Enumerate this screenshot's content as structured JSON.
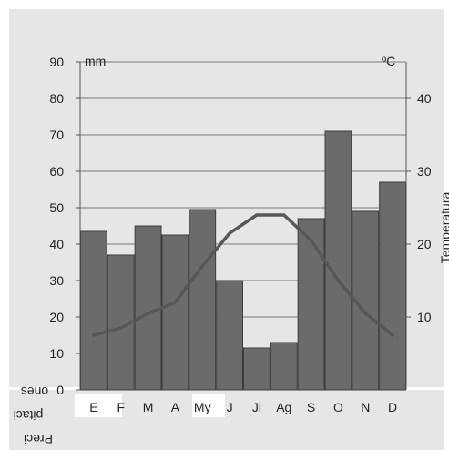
{
  "chart_data": {
    "type": "bar",
    "categories": [
      "E",
      "F",
      "M",
      "A",
      "My",
      "J",
      "Jl",
      "Ag",
      "S",
      "O",
      "N",
      "D"
    ],
    "series": [
      {
        "type": "bar",
        "values": [
          43.5,
          37,
          45,
          42.5,
          49.5,
          30,
          11.5,
          13,
          47,
          71,
          49,
          57
        ],
        "color": "#6b6b6b",
        "axis": "left"
      },
      {
        "type": "line",
        "values": [
          7.5,
          8.5,
          10.5,
          12,
          17,
          21.5,
          24,
          24,
          20.5,
          15,
          10.5,
          7.5
        ],
        "color": "#575757",
        "axis": "right"
      }
    ],
    "y_left": {
      "unit": "mm",
      "ticks": [
        0,
        10,
        20,
        30,
        40,
        50,
        60,
        70,
        80,
        90
      ],
      "tick_labels": [
        "0",
        "10",
        "20",
        "30",
        "40",
        "50",
        "60",
        "70",
        "80",
        "90"
      ],
      "range": [
        0,
        90
      ],
      "label_lines": [
        "ones",
        "pitaci",
        "Preci"
      ],
      "label_orientation": "upside-down"
    },
    "y_right": {
      "unit": "ºC",
      "ticks": [
        10,
        20,
        30,
        40
      ],
      "tick_labels": [
        "10",
        "20",
        "30",
        "40"
      ],
      "range": [
        0,
        45
      ],
      "label": "Temperatura"
    },
    "grid": true,
    "legend": "none",
    "colors": {
      "plot_background": "#e6e6e6",
      "axis_strip": "#ffffff",
      "grid": "#555555",
      "text": "#222222",
      "bar_edge": "#3c3c3c"
    }
  }
}
